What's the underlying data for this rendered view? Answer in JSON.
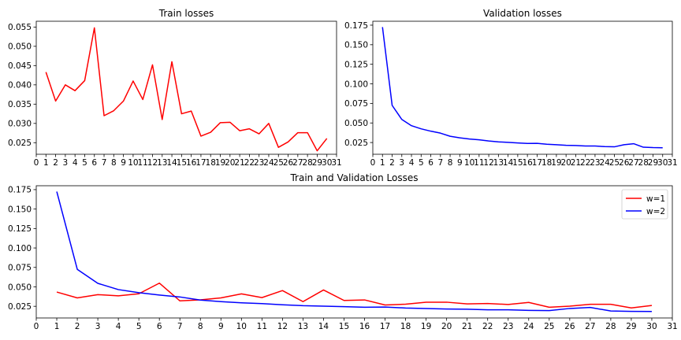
{
  "chart_data": [
    {
      "type": "line",
      "title": "Train losses",
      "xlabel": "",
      "ylabel": "",
      "xlim": [
        0,
        31
      ],
      "ylim": [
        0.022,
        0.0565
      ],
      "x_ticks": [
        0,
        1,
        2,
        3,
        4,
        5,
        6,
        7,
        8,
        9,
        10,
        11,
        12,
        13,
        14,
        15,
        16,
        17,
        18,
        19,
        20,
        21,
        22,
        23,
        24,
        25,
        26,
        27,
        28,
        29,
        30,
        31
      ],
      "y_ticks": [
        0.025,
        0.03,
        0.035,
        0.04,
        0.045,
        0.05,
        0.055
      ],
      "y_tick_labels": [
        "0.025",
        "0.030",
        "0.035",
        "0.040",
        "0.045",
        "0.050",
        "0.055"
      ],
      "grid": false,
      "series": [
        {
          "color": "#ff0000",
          "x": [
            1,
            2,
            3,
            4,
            5,
            6,
            7,
            8,
            9,
            10,
            11,
            12,
            13,
            14,
            15,
            16,
            17,
            18,
            19,
            20,
            21,
            22,
            23,
            24,
            25,
            26,
            27,
            28,
            29,
            30
          ],
          "values": [
            0.0433,
            0.0358,
            0.04,
            0.0385,
            0.0411,
            0.0548,
            0.032,
            0.0333,
            0.0358,
            0.041,
            0.0362,
            0.0452,
            0.031,
            0.046,
            0.0325,
            0.0332,
            0.0267,
            0.0277,
            0.0302,
            0.0303,
            0.0281,
            0.0286,
            0.0273,
            0.03,
            0.0238,
            0.0252,
            0.0276,
            0.0276,
            0.0229,
            0.0261
          ]
        }
      ]
    },
    {
      "type": "line",
      "title": "Validation losses",
      "xlabel": "",
      "ylabel": "",
      "xlim": [
        0,
        31
      ],
      "ylim": [
        0.01,
        0.18
      ],
      "x_ticks": [
        0,
        1,
        2,
        3,
        4,
        5,
        6,
        7,
        8,
        9,
        10,
        11,
        12,
        13,
        14,
        15,
        16,
        17,
        18,
        19,
        20,
        21,
        22,
        23,
        24,
        25,
        26,
        27,
        28,
        29,
        30,
        31
      ],
      "y_ticks": [
        0.025,
        0.05,
        0.075,
        0.1,
        0.125,
        0.15,
        0.175
      ],
      "y_tick_labels": [
        "0.025",
        "0.050",
        "0.075",
        "0.100",
        "0.125",
        "0.150",
        "0.175"
      ],
      "grid": false,
      "series": [
        {
          "color": "#0000ff",
          "x": [
            1,
            2,
            3,
            4,
            5,
            6,
            7,
            8,
            9,
            10,
            11,
            12,
            13,
            14,
            15,
            16,
            17,
            18,
            19,
            20,
            21,
            22,
            23,
            24,
            25,
            26,
            27,
            28,
            29,
            30
          ],
          "values": [
            0.1725,
            0.0725,
            0.0545,
            0.0465,
            0.0425,
            0.0395,
            0.037,
            0.033,
            0.031,
            0.0295,
            0.0285,
            0.027,
            0.0258,
            0.0252,
            0.0245,
            0.0238,
            0.024,
            0.0228,
            0.0222,
            0.0215,
            0.0212,
            0.0205,
            0.0205,
            0.0198,
            0.0195,
            0.0222,
            0.0235,
            0.019,
            0.0185,
            0.0183
          ]
        }
      ]
    },
    {
      "type": "line",
      "title": "Train and Validation Losses",
      "xlabel": "",
      "ylabel": "",
      "xlim": [
        0,
        31
      ],
      "ylim": [
        0.01,
        0.18
      ],
      "x_ticks": [
        0,
        1,
        2,
        3,
        4,
        5,
        6,
        7,
        8,
        9,
        10,
        11,
        12,
        13,
        14,
        15,
        16,
        17,
        18,
        19,
        20,
        21,
        22,
        23,
        24,
        25,
        26,
        27,
        28,
        29,
        30,
        31
      ],
      "y_ticks": [
        0.025,
        0.05,
        0.075,
        0.1,
        0.125,
        0.15,
        0.175
      ],
      "y_tick_labels": [
        "0.025",
        "0.050",
        "0.075",
        "0.100",
        "0.125",
        "0.150",
        "0.175"
      ],
      "grid": false,
      "legend": "top-right",
      "series": [
        {
          "name": "w=1",
          "color": "#ff0000",
          "x": [
            1,
            2,
            3,
            4,
            5,
            6,
            7,
            8,
            9,
            10,
            11,
            12,
            13,
            14,
            15,
            16,
            17,
            18,
            19,
            20,
            21,
            22,
            23,
            24,
            25,
            26,
            27,
            28,
            29,
            30
          ],
          "values": [
            0.0433,
            0.0358,
            0.04,
            0.0385,
            0.0411,
            0.0548,
            0.032,
            0.0333,
            0.0358,
            0.041,
            0.0362,
            0.0452,
            0.031,
            0.046,
            0.0325,
            0.0332,
            0.0267,
            0.0277,
            0.0302,
            0.0303,
            0.0281,
            0.0286,
            0.0273,
            0.03,
            0.0238,
            0.0252,
            0.0276,
            0.0276,
            0.0229,
            0.0261
          ]
        },
        {
          "name": "w=2",
          "color": "#0000ff",
          "x": [
            1,
            2,
            3,
            4,
            5,
            6,
            7,
            8,
            9,
            10,
            11,
            12,
            13,
            14,
            15,
            16,
            17,
            18,
            19,
            20,
            21,
            22,
            23,
            24,
            25,
            26,
            27,
            28,
            29,
            30
          ],
          "values": [
            0.1725,
            0.0725,
            0.0545,
            0.0465,
            0.0425,
            0.0395,
            0.037,
            0.033,
            0.031,
            0.0295,
            0.0285,
            0.027,
            0.0258,
            0.0252,
            0.0245,
            0.0238,
            0.024,
            0.0228,
            0.0222,
            0.0215,
            0.0212,
            0.0205,
            0.0205,
            0.0198,
            0.0195,
            0.0222,
            0.0235,
            0.019,
            0.0185,
            0.0183
          ]
        }
      ]
    }
  ]
}
